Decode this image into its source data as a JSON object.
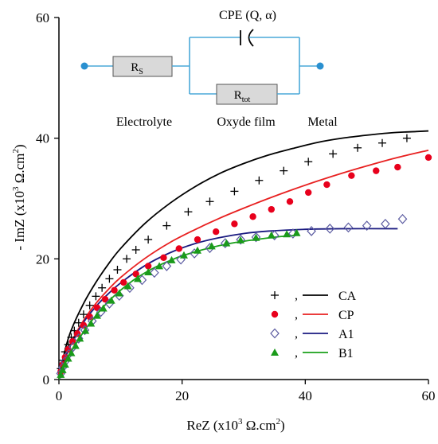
{
  "chart_data": {
    "type": "scatter",
    "xlabel": "ReZ (x10³ Ω.cm²)",
    "ylabel": "- ImZ (x10³ Ω.cm²)",
    "xlim": [
      0,
      60
    ],
    "ylim": [
      0,
      60
    ],
    "x_ticks": [
      "0",
      "20",
      "40",
      "60"
    ],
    "y_ticks": [
      "0",
      "20",
      "40",
      "60"
    ],
    "grid": false,
    "legend_position": "bottom-right",
    "series": [
      {
        "name": "CA",
        "marker": "plus",
        "marker_color": "#000000",
        "line_color": "#000000",
        "points": [
          [
            0.3,
            1.8
          ],
          [
            0.6,
            3.2
          ],
          [
            1.0,
            4.6
          ],
          [
            1.5,
            5.8
          ],
          [
            2.0,
            7.0
          ],
          [
            2.5,
            8.1
          ],
          [
            3.2,
            9.4
          ],
          [
            4.0,
            10.8
          ],
          [
            5.0,
            12.3
          ],
          [
            6.0,
            13.8
          ],
          [
            7.0,
            15.2
          ],
          [
            8.2,
            16.7
          ],
          [
            9.5,
            18.2
          ],
          [
            11.0,
            20.0
          ],
          [
            12.5,
            21.5
          ],
          [
            14.5,
            23.2
          ],
          [
            17.5,
            25.5
          ],
          [
            21.0,
            27.8
          ],
          [
            24.5,
            29.5
          ],
          [
            28.5,
            31.2
          ],
          [
            32.5,
            33.0
          ],
          [
            36.5,
            34.6
          ],
          [
            40.5,
            36.1
          ],
          [
            44.5,
            37.4
          ],
          [
            48.5,
            38.4
          ],
          [
            52.5,
            39.2
          ],
          [
            56.5,
            40.0
          ]
        ],
        "fit": [
          [
            0,
            0
          ],
          [
            1,
            4.9
          ],
          [
            2,
            8.2
          ],
          [
            4,
            12.6
          ],
          [
            6,
            16.1
          ],
          [
            8,
            19.1
          ],
          [
            10,
            21.7
          ],
          [
            14,
            25.9
          ],
          [
            18,
            29.2
          ],
          [
            22,
            31.9
          ],
          [
            26,
            34.1
          ],
          [
            30,
            35.8
          ],
          [
            34,
            37.2
          ],
          [
            38,
            38.3
          ],
          [
            42,
            39.3
          ],
          [
            46,
            40.0
          ],
          [
            50,
            40.5
          ],
          [
            54,
            40.9
          ],
          [
            58,
            41.1
          ],
          [
            60,
            41.2
          ]
        ]
      },
      {
        "name": "CP",
        "marker": "circle",
        "marker_color": "#e8001c",
        "line_color": "#e82020",
        "points": [
          [
            0.3,
            1.3
          ],
          [
            0.6,
            2.5
          ],
          [
            1.0,
            3.7
          ],
          [
            1.5,
            5.0
          ],
          [
            2.2,
            6.3
          ],
          [
            3.0,
            7.6
          ],
          [
            4.0,
            9.0
          ],
          [
            5.0,
            10.4
          ],
          [
            6.2,
            11.9
          ],
          [
            7.5,
            13.3
          ],
          [
            9.0,
            14.8
          ],
          [
            10.5,
            16.1
          ],
          [
            12.5,
            17.5
          ],
          [
            14.5,
            18.8
          ],
          [
            17.0,
            20.2
          ],
          [
            19.5,
            21.7
          ],
          [
            22.5,
            23.2
          ],
          [
            25.5,
            24.5
          ],
          [
            28.5,
            25.8
          ],
          [
            31.5,
            27.0
          ],
          [
            34.5,
            28.2
          ],
          [
            37.5,
            29.5
          ],
          [
            40.5,
            31.0
          ],
          [
            43.5,
            32.3
          ],
          [
            47.5,
            33.8
          ],
          [
            51.5,
            34.6
          ],
          [
            55.0,
            35.2
          ],
          [
            60.0,
            36.8
          ]
        ],
        "fit": [
          [
            0,
            0
          ],
          [
            1,
            3.6
          ],
          [
            2,
            6.2
          ],
          [
            4,
            9.8
          ],
          [
            6,
            12.6
          ],
          [
            8,
            14.9
          ],
          [
            10,
            16.9
          ],
          [
            14,
            20.1
          ],
          [
            18,
            22.7
          ],
          [
            22,
            24.8
          ],
          [
            26,
            26.7
          ],
          [
            30,
            28.4
          ],
          [
            34,
            30.0
          ],
          [
            38,
            31.5
          ],
          [
            42,
            32.9
          ],
          [
            46,
            34.2
          ],
          [
            50,
            35.4
          ],
          [
            55,
            36.8
          ],
          [
            60,
            38.0
          ]
        ]
      },
      {
        "name": "A1",
        "marker": "diamond",
        "marker_color": "#5a5aa0",
        "line_color": "#1a1a80",
        "points": [
          [
            0.3,
            1.0
          ],
          [
            0.6,
            2.0
          ],
          [
            1.0,
            3.0
          ],
          [
            1.6,
            4.2
          ],
          [
            2.3,
            5.4
          ],
          [
            3.2,
            6.8
          ],
          [
            4.2,
            8.2
          ],
          [
            5.4,
            9.7
          ],
          [
            6.8,
            11.2
          ],
          [
            8.2,
            12.6
          ],
          [
            9.8,
            13.9
          ],
          [
            11.5,
            15.2
          ],
          [
            13.5,
            16.5
          ],
          [
            15.5,
            17.7
          ],
          [
            17.5,
            18.8
          ],
          [
            19.8,
            19.9
          ],
          [
            22.0,
            20.9
          ],
          [
            24.5,
            21.8
          ],
          [
            27.0,
            22.6
          ],
          [
            29.5,
            23.2
          ],
          [
            32.0,
            23.6
          ],
          [
            35.0,
            23.9
          ],
          [
            38.0,
            24.2
          ],
          [
            41.0,
            24.6
          ],
          [
            44.0,
            25.0
          ],
          [
            47.0,
            25.2
          ],
          [
            50.0,
            25.5
          ],
          [
            53.0,
            25.8
          ],
          [
            55.8,
            26.6
          ]
        ],
        "fit": [
          [
            0,
            0
          ],
          [
            1,
            3.4
          ],
          [
            2,
            5.9
          ],
          [
            4,
            9.5
          ],
          [
            6,
            12.1
          ],
          [
            8,
            14.2
          ],
          [
            10,
            16.0
          ],
          [
            14,
            18.9
          ],
          [
            18,
            21.0
          ],
          [
            22,
            22.5
          ],
          [
            26,
            23.5
          ],
          [
            30,
            24.2
          ],
          [
            34,
            24.6
          ],
          [
            40,
            24.9
          ],
          [
            46,
            25.0
          ],
          [
            55,
            25.0
          ]
        ]
      },
      {
        "name": "B1",
        "marker": "triangle",
        "marker_color": "#1a9a1a",
        "line_color": "#1aa01a",
        "points": [
          [
            0.3,
            0.8
          ],
          [
            0.6,
            1.6
          ],
          [
            1.0,
            2.5
          ],
          [
            1.5,
            3.5
          ],
          [
            2.0,
            4.4
          ],
          [
            2.7,
            5.6
          ],
          [
            3.4,
            6.8
          ],
          [
            4.3,
            8.1
          ],
          [
            5.2,
            9.3
          ],
          [
            6.2,
            10.6
          ],
          [
            7.2,
            11.8
          ],
          [
            8.5,
            13.1
          ],
          [
            9.8,
            14.3
          ],
          [
            11.2,
            15.5
          ],
          [
            12.8,
            16.7
          ],
          [
            14.5,
            17.8
          ],
          [
            16.3,
            18.8
          ],
          [
            18.3,
            19.8
          ],
          [
            20.3,
            20.6
          ],
          [
            22.5,
            21.4
          ],
          [
            24.8,
            22.1
          ],
          [
            27.2,
            22.6
          ],
          [
            29.5,
            23.1
          ],
          [
            32.0,
            23.5
          ],
          [
            34.5,
            23.9
          ],
          [
            37.0,
            24.1
          ],
          [
            38.6,
            24.3
          ]
        ],
        "fit": [
          [
            0,
            0
          ],
          [
            1,
            2.6
          ],
          [
            2,
            4.6
          ],
          [
            4,
            7.9
          ],
          [
            6,
            10.6
          ],
          [
            8,
            12.9
          ],
          [
            10,
            14.8
          ],
          [
            12,
            16.4
          ],
          [
            14,
            17.7
          ],
          [
            16,
            18.8
          ],
          [
            18,
            19.7
          ],
          [
            20,
            20.5
          ],
          [
            24,
            21.7
          ],
          [
            28,
            22.6
          ],
          [
            32,
            23.2
          ],
          [
            36,
            23.7
          ],
          [
            38.5,
            23.9
          ]
        ]
      }
    ],
    "inset_circuit": {
      "label_top": "CPE (Q, α)",
      "rs_label": "R",
      "rs_sub": "S",
      "rtot_label": "R",
      "rtot_sub": "tot",
      "label_electrolyte": "Electrolyte",
      "label_oxyde": "Oxyde film",
      "label_metal": "Metal",
      "wire_color": "#4aa8d8",
      "terminal_color": "#2a90d0",
      "box_fill": "#d9d9d9"
    }
  }
}
